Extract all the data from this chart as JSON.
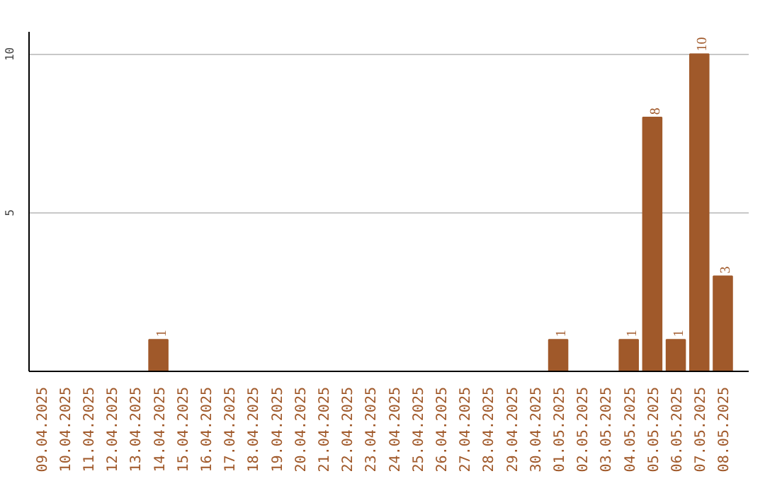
{
  "chart_data": {
    "type": "bar",
    "categories": [
      "09.04.2025",
      "10.04.2025",
      "11.04.2025",
      "12.04.2025",
      "13.04.2025",
      "14.04.2025",
      "15.04.2025",
      "16.04.2025",
      "17.04.2025",
      "18.04.2025",
      "19.04.2025",
      "20.04.2025",
      "21.04.2025",
      "22.04.2025",
      "23.04.2025",
      "24.04.2025",
      "25.04.2025",
      "26.04.2025",
      "27.04.2025",
      "28.04.2025",
      "29.04.2025",
      "30.04.2025",
      "01.05.2025",
      "02.05.2025",
      "03.05.2025",
      "04.05.2025",
      "05.05.2025",
      "06.05.2025",
      "07.05.2025",
      "08.05.2025"
    ],
    "values": [
      0,
      0,
      0,
      0,
      0,
      1,
      0,
      0,
      0,
      0,
      0,
      0,
      0,
      0,
      0,
      0,
      0,
      0,
      0,
      0,
      0,
      0,
      1,
      0,
      0,
      1,
      8,
      1,
      10,
      3
    ],
    "value_labels": [
      null,
      null,
      null,
      null,
      null,
      "1",
      null,
      null,
      null,
      null,
      null,
      null,
      null,
      null,
      null,
      null,
      null,
      null,
      null,
      null,
      null,
      null,
      "1",
      null,
      null,
      "1",
      "8",
      "1",
      "10",
      "3"
    ],
    "color": "#a0592a",
    "ylim": [
      0,
      10.7
    ],
    "yticks": [
      5,
      10
    ],
    "grid": "y"
  }
}
